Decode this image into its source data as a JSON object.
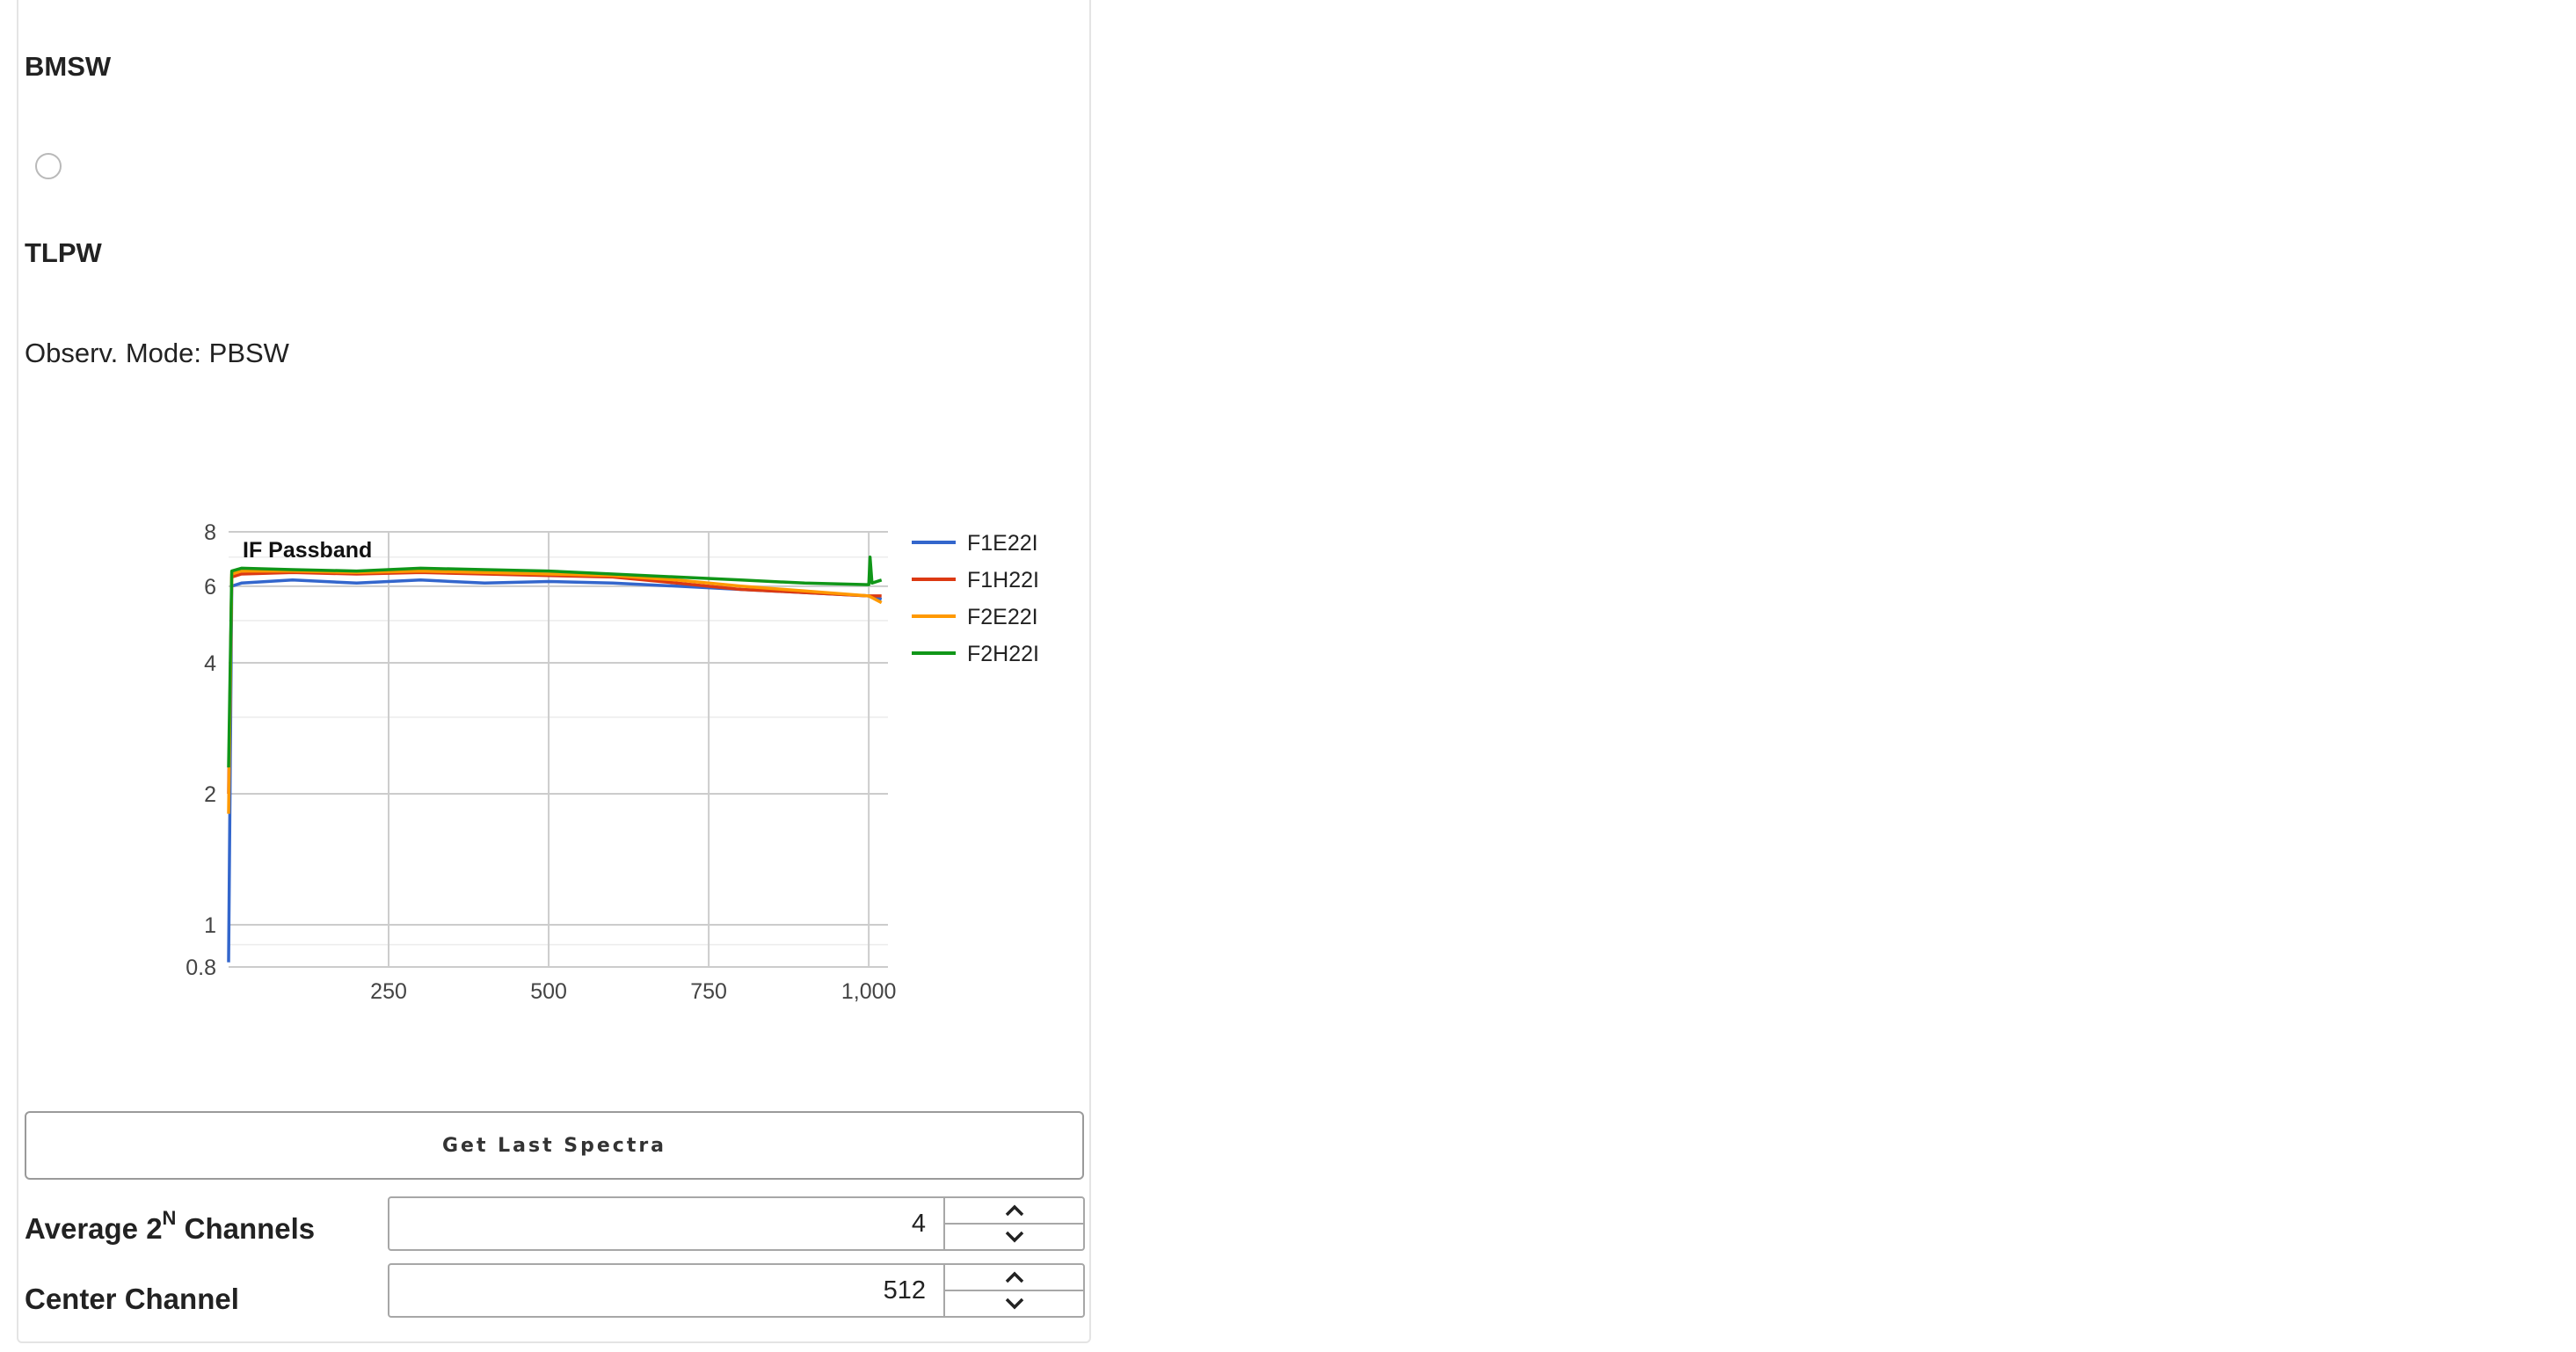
{
  "options": {
    "bmsw_label": "BMSW",
    "tlpw_label": "TLPW"
  },
  "mode": {
    "label": "Observ. Mode:",
    "value": "PBSW"
  },
  "chart_data": {
    "type": "line",
    "title": "IF Passband",
    "xlabel": "",
    "ylabel": "",
    "xlim": [
      0,
      1030
    ],
    "ylim": [
      0.8,
      8
    ],
    "yscale": "log",
    "x_ticks": [
      250,
      500,
      750,
      1000
    ],
    "x_tick_labels": [
      "250",
      "500",
      "750",
      "1,000"
    ],
    "y_ticks": [
      0.8,
      1,
      2,
      4,
      6,
      8
    ],
    "y_tick_labels": [
      "0.8",
      "1",
      "2",
      "4",
      "6",
      "8"
    ],
    "grid": true,
    "legend": "right",
    "series": [
      {
        "name": "F1E22I",
        "color": "#3366cc",
        "points": [
          [
            0,
            0.82
          ],
          [
            5,
            6.0
          ],
          [
            20,
            6.1
          ],
          [
            100,
            6.2
          ],
          [
            200,
            6.1
          ],
          [
            300,
            6.2
          ],
          [
            400,
            6.1
          ],
          [
            500,
            6.15
          ],
          [
            600,
            6.1
          ],
          [
            700,
            6.0
          ],
          [
            800,
            5.9
          ],
          [
            900,
            5.8
          ],
          [
            1000,
            5.7
          ],
          [
            1020,
            5.6
          ]
        ]
      },
      {
        "name": "F1H22I",
        "color": "#dc3912",
        "points": [
          [
            0,
            2.0
          ],
          [
            5,
            6.3
          ],
          [
            20,
            6.4
          ],
          [
            100,
            6.45
          ],
          [
            200,
            6.4
          ],
          [
            300,
            6.45
          ],
          [
            400,
            6.4
          ],
          [
            500,
            6.35
          ],
          [
            600,
            6.3
          ],
          [
            700,
            6.1
          ],
          [
            800,
            5.9
          ],
          [
            900,
            5.8
          ],
          [
            1000,
            5.7
          ],
          [
            1020,
            5.7
          ]
        ]
      },
      {
        "name": "F2E22I",
        "color": "#ff9900",
        "points": [
          [
            0,
            1.8
          ],
          [
            5,
            6.4
          ],
          [
            20,
            6.5
          ],
          [
            100,
            6.5
          ],
          [
            200,
            6.45
          ],
          [
            300,
            6.5
          ],
          [
            400,
            6.45
          ],
          [
            500,
            6.4
          ],
          [
            600,
            6.35
          ],
          [
            700,
            6.2
          ],
          [
            800,
            6.0
          ],
          [
            900,
            5.85
          ],
          [
            1000,
            5.7
          ],
          [
            1020,
            5.5
          ]
        ]
      },
      {
        "name": "F2H22I",
        "color": "#109618",
        "points": [
          [
            0,
            2.3
          ],
          [
            5,
            6.5
          ],
          [
            20,
            6.6
          ],
          [
            100,
            6.55
          ],
          [
            200,
            6.5
          ],
          [
            300,
            6.6
          ],
          [
            400,
            6.55
          ],
          [
            500,
            6.5
          ],
          [
            600,
            6.4
          ],
          [
            700,
            6.3
          ],
          [
            800,
            6.2
          ],
          [
            900,
            6.1
          ],
          [
            1000,
            6.05
          ],
          [
            1002,
            7.0
          ],
          [
            1005,
            6.1
          ],
          [
            1020,
            6.2
          ]
        ]
      }
    ]
  },
  "actions": {
    "get_spectra_label": "Get Last Spectra"
  },
  "fields": {
    "average_label_prefix": "Average 2",
    "average_label_sup": "N",
    "average_label_suffix": " Channels",
    "average_value": "4",
    "center_label": "Center Channel",
    "center_value": "512"
  }
}
